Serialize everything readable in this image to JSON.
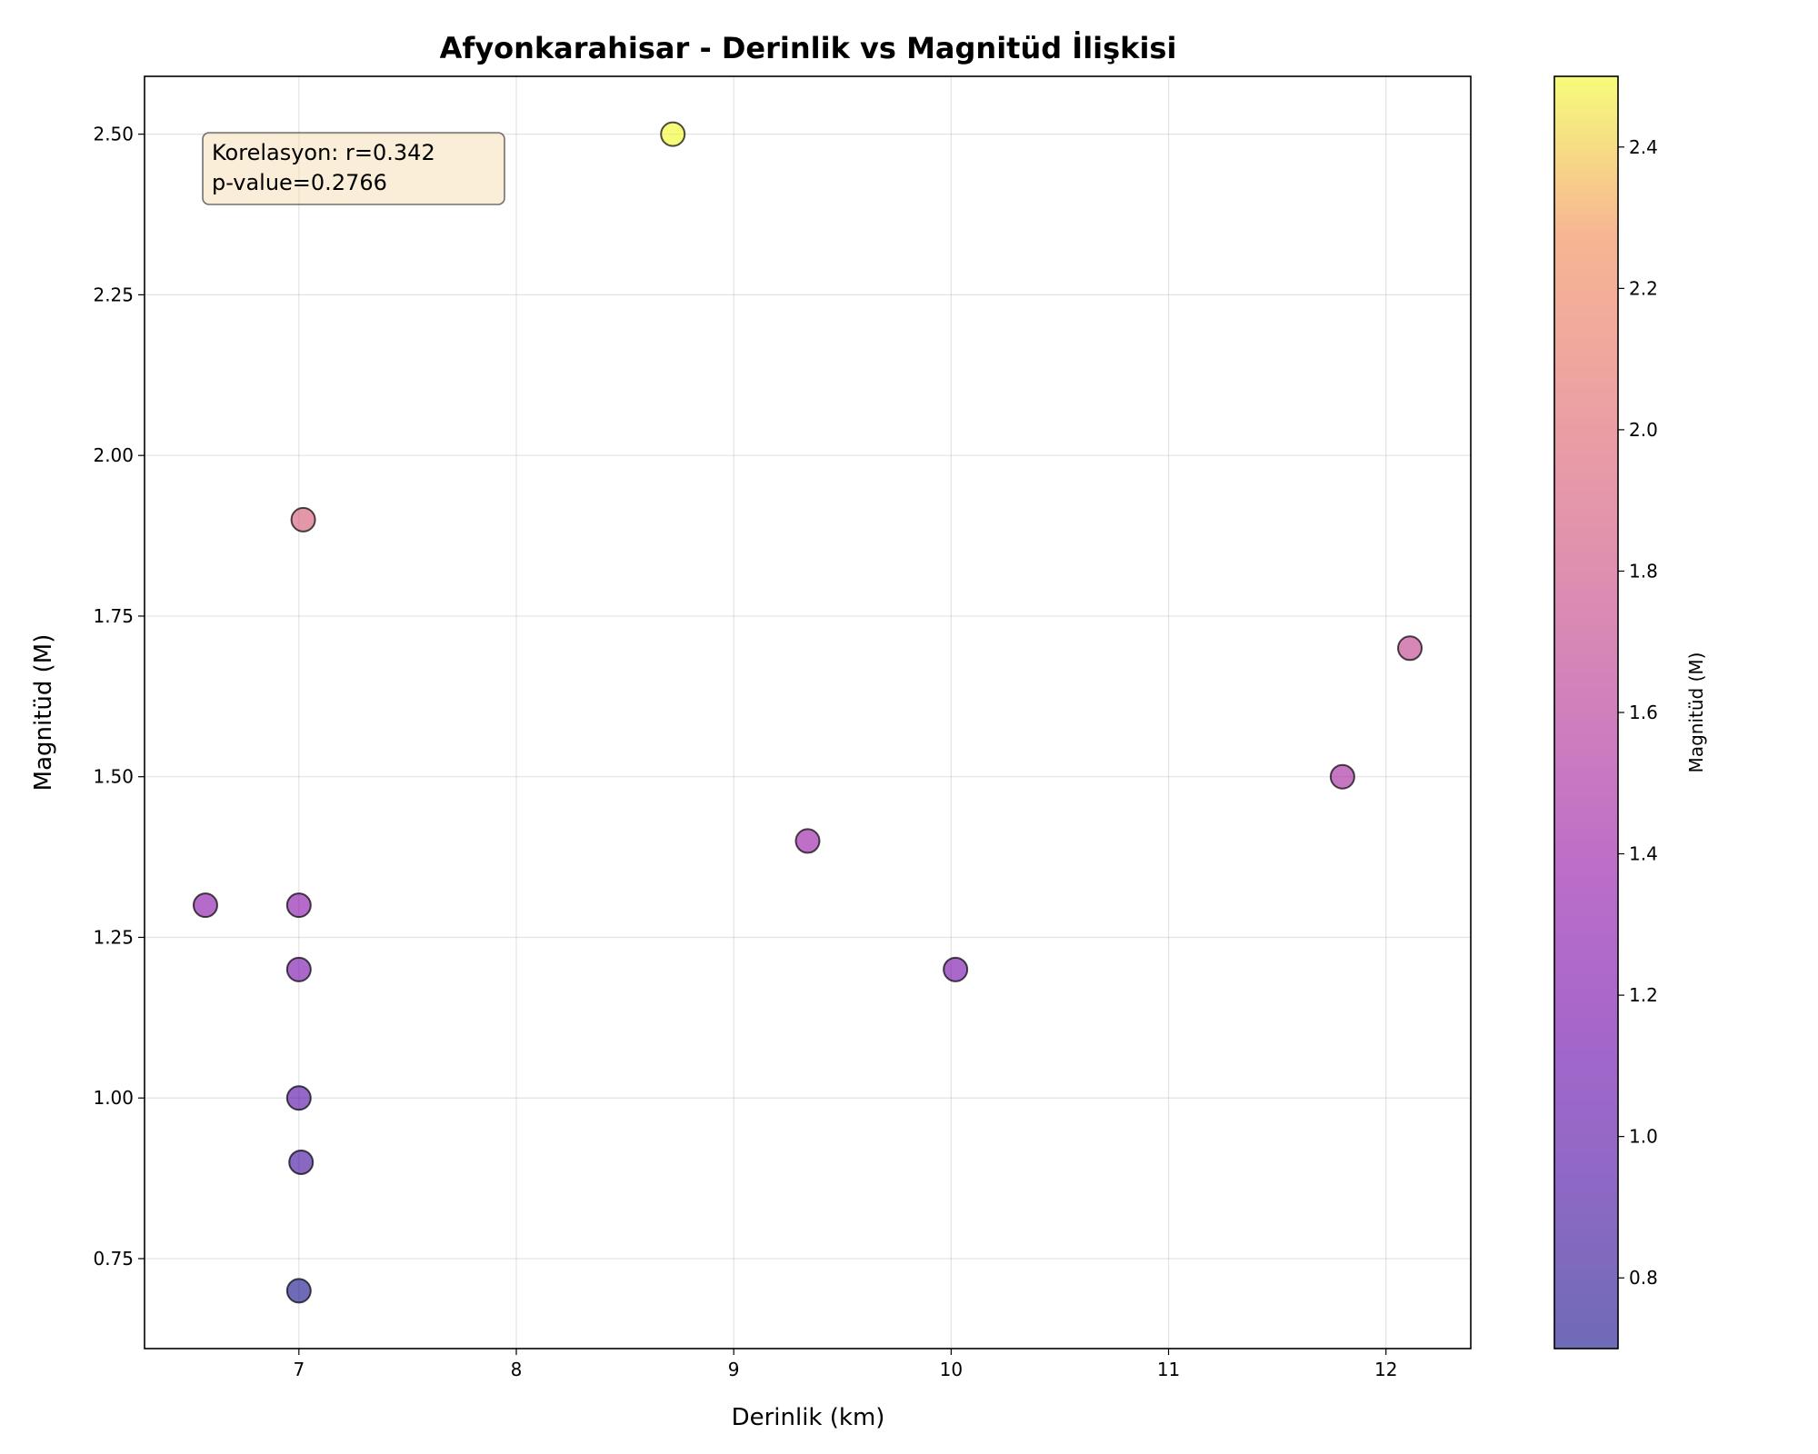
{
  "chart_data": {
    "type": "scatter",
    "title": "Afyonkarahisar - Derinlik vs Magnitüd İlişkisi",
    "xlabel": "Derinlik (km)",
    "ylabel": "Magnitüd (M)",
    "xlim": [
      6.29,
      12.39
    ],
    "ylim": [
      0.61,
      2.59
    ],
    "xticks": [
      7,
      8,
      9,
      10,
      11,
      12
    ],
    "xtick_labels": [
      "7",
      "8",
      "9",
      "10",
      "11",
      "12"
    ],
    "yticks": [
      0.75,
      1.0,
      1.25,
      1.5,
      1.75,
      2.0,
      2.25,
      2.5
    ],
    "ytick_labels": [
      "0.75",
      "1.00",
      "1.25",
      "1.50",
      "1.75",
      "2.00",
      "2.25",
      "2.50"
    ],
    "grid": true,
    "points": [
      {
        "x": 8.72,
        "y": 2.5
      },
      {
        "x": 7.02,
        "y": 1.9
      },
      {
        "x": 12.11,
        "y": 1.7
      },
      {
        "x": 11.8,
        "y": 1.5
      },
      {
        "x": 9.34,
        "y": 1.4
      },
      {
        "x": 6.57,
        "y": 1.3
      },
      {
        "x": 7.0,
        "y": 1.3
      },
      {
        "x": 7.0,
        "y": 1.2
      },
      {
        "x": 10.02,
        "y": 1.2
      },
      {
        "x": 7.0,
        "y": 1.0
      },
      {
        "x": 7.01,
        "y": 0.9
      },
      {
        "x": 7.0,
        "y": 0.7
      }
    ],
    "colorbar": {
      "label": "Magnitüd (M)",
      "colormap": "plasma",
      "alpha": 0.6,
      "range": [
        0.7,
        2.5
      ],
      "ticks": [
        0.8,
        1.0,
        1.2,
        1.4,
        1.6,
        1.8,
        2.0,
        2.2,
        2.4
      ],
      "tick_labels": [
        "0.8",
        "1.0",
        "1.2",
        "1.4",
        "1.6",
        "1.8",
        "2.0",
        "2.2",
        "2.4"
      ]
    },
    "annotation": {
      "lines": [
        "Korelasyon: r=0.342",
        "p-value=0.2766"
      ],
      "background": "#f5deb3"
    }
  }
}
